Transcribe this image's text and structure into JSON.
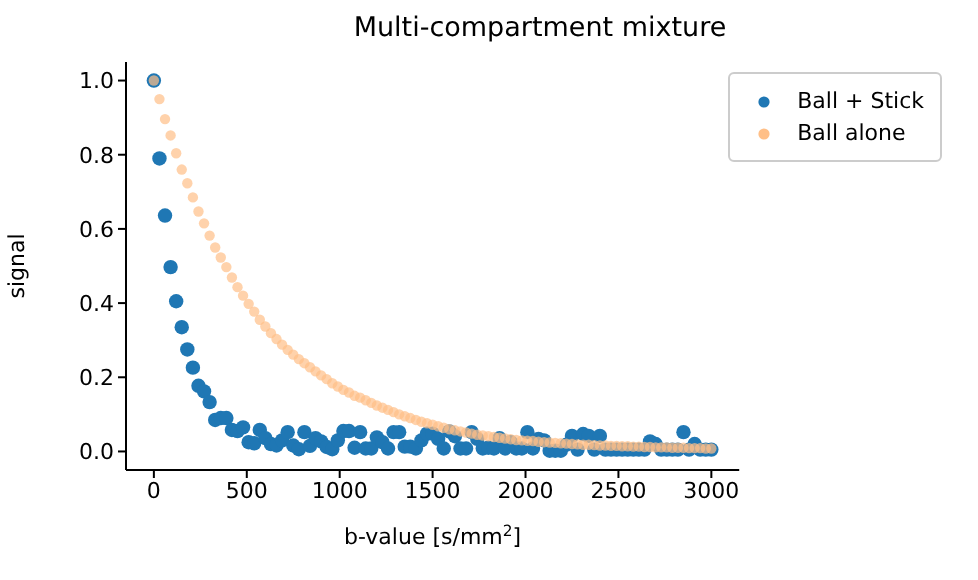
{
  "chart_data": {
    "type": "scatter",
    "title": "Multi-compartment mixture",
    "xlabel": "b-value [s/mm$^{2}$]",
    "ylabel": "signal",
    "x": [
      0,
      30,
      60,
      90,
      120,
      150,
      180,
      210,
      240,
      270,
      300,
      330,
      360,
      390,
      420,
      450,
      480,
      510,
      540,
      570,
      600,
      630,
      660,
      690,
      720,
      750,
      780,
      810,
      840,
      870,
      900,
      930,
      960,
      990,
      1020,
      1050,
      1080,
      1110,
      1140,
      1170,
      1200,
      1230,
      1260,
      1290,
      1320,
      1350,
      1380,
      1410,
      1440,
      1470,
      1500,
      1530,
      1560,
      1590,
      1620,
      1650,
      1680,
      1710,
      1740,
      1770,
      1800,
      1830,
      1860,
      1890,
      1920,
      1950,
      1980,
      2010,
      2040,
      2070,
      2100,
      2130,
      2160,
      2190,
      2220,
      2250,
      2280,
      2310,
      2340,
      2370,
      2400,
      2430,
      2460,
      2490,
      2520,
      2550,
      2580,
      2610,
      2640,
      2670,
      2700,
      2730,
      2760,
      2790,
      2820,
      2850,
      2880,
      2910,
      2940,
      2970,
      3000
    ],
    "series": [
      {
        "name": "Ball + Stick",
        "color": "#1f77b4",
        "values": [
          1.0,
          0.79,
          0.636,
          0.497,
          0.405,
          0.335,
          0.275,
          0.226,
          0.177,
          0.162,
          0.133,
          0.085,
          0.09,
          0.09,
          0.058,
          0.055,
          0.065,
          0.025,
          0.022,
          0.058,
          0.036,
          0.02,
          0.016,
          0.03,
          0.052,
          0.016,
          0.006,
          0.052,
          0.015,
          0.036,
          0.027,
          0.012,
          0.006,
          0.03,
          0.055,
          0.055,
          0.01,
          0.052,
          0.008,
          0.008,
          0.038,
          0.025,
          0.008,
          0.052,
          0.052,
          0.013,
          0.013,
          0.008,
          0.03,
          0.048,
          0.048,
          0.034,
          0.008,
          0.054,
          0.041,
          0.008,
          0.008,
          0.052,
          0.034,
          0.008,
          0.01,
          0.008,
          0.036,
          0.008,
          0.025,
          0.008,
          0.008,
          0.052,
          0.008,
          0.034,
          0.03,
          0.002,
          0.002,
          0.002,
          0.018,
          0.042,
          0.005,
          0.047,
          0.042,
          0.005,
          0.042,
          0.005,
          0.005,
          0.005,
          0.005,
          0.005,
          0.005,
          0.005,
          0.005,
          0.027,
          0.02,
          0.005,
          0.005,
          0.005,
          0.005,
          0.052,
          0.005,
          0.02,
          0.005,
          0.005,
          0.005
        ]
      },
      {
        "name": "Ball alone",
        "color": "#ffbf87",
        "values": [
          1.0,
          0.95,
          0.896,
          0.852,
          0.804,
          0.76,
          0.723,
          0.685,
          0.647,
          0.615,
          0.582,
          0.55,
          0.523,
          0.497,
          0.469,
          0.443,
          0.42,
          0.398,
          0.377,
          0.355,
          0.337,
          0.319,
          0.303,
          0.288,
          0.274,
          0.261,
          0.249,
          0.238,
          0.227,
          0.216,
          0.205,
          0.195,
          0.184,
          0.175,
          0.166,
          0.159,
          0.15,
          0.145,
          0.138,
          0.131,
          0.124,
          0.118,
          0.112,
          0.106,
          0.1,
          0.095,
          0.09,
          0.085,
          0.08,
          0.076,
          0.072,
          0.068,
          0.064,
          0.06,
          0.057,
          0.054,
          0.051,
          0.048,
          0.045,
          0.043,
          0.041,
          0.039,
          0.037,
          0.035,
          0.033,
          0.031,
          0.03,
          0.029,
          0.028,
          0.026,
          0.025,
          0.024,
          0.023,
          0.022,
          0.021,
          0.02,
          0.019,
          0.018,
          0.018,
          0.017,
          0.016,
          0.016,
          0.015,
          0.015,
          0.014,
          0.014,
          0.013,
          0.013,
          0.012,
          0.012,
          0.011,
          0.011,
          0.011,
          0.01,
          0.01,
          0.01,
          0.009,
          0.009,
          0.009,
          0.008,
          0.008
        ]
      }
    ],
    "xlim": [
      -150,
      3150
    ],
    "xticks": [
      0,
      500,
      1000,
      1500,
      2000,
      2500,
      3000
    ],
    "ylim": [
      -0.05,
      1.05
    ],
    "yticks": [
      {
        "value": 0,
        "label": "0.0"
      },
      {
        "value": 0.2,
        "label": "0.2"
      },
      {
        "value": 0.4,
        "label": "0.4"
      },
      {
        "value": 0.6,
        "label": "0.6"
      },
      {
        "value": 0.8,
        "label": "0.8"
      },
      {
        "value": 1,
        "label": "1.0"
      }
    ],
    "legend": "top right",
    "marker": "circle",
    "grid": false
  }
}
